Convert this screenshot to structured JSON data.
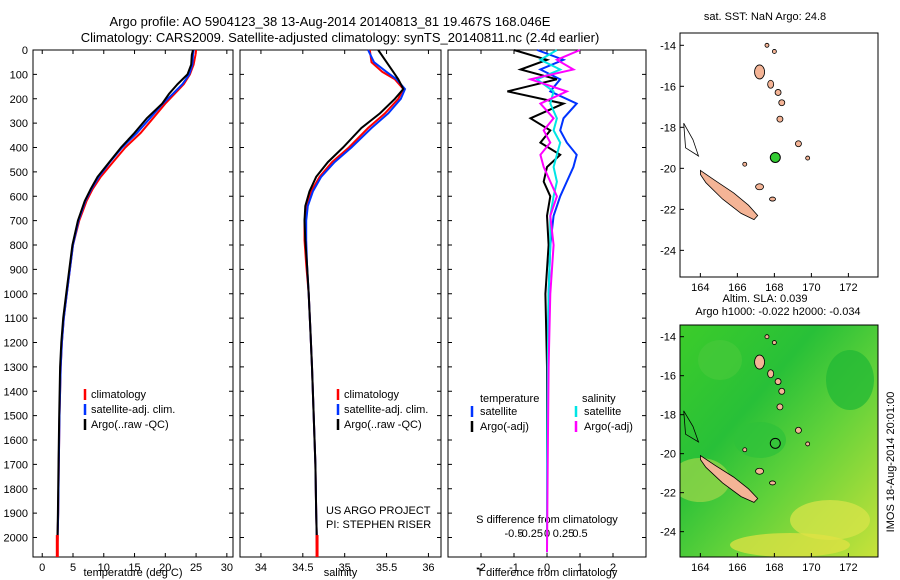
{
  "header": {
    "line1": "Argo profile: AO 5904123_38 13-Aug-2014 20140813_81 19.467S 168.046E",
    "line2": "Climatology: CARS2009. Satellite-adjusted climatology: synTS_20140811.nc (2.4d earlier)"
  },
  "colors": {
    "clim": "#ff0000",
    "sat": "#0033ff",
    "argo": "#000000",
    "sat_salt": "#00e5e5",
    "argo_salt": "#ff00ff",
    "land": "#f4b496"
  },
  "depth_axis": {
    "ticks": [
      0,
      100,
      200,
      300,
      400,
      500,
      600,
      700,
      800,
      900,
      1000,
      1100,
      1200,
      1300,
      1400,
      1500,
      1600,
      1700,
      1800,
      1900,
      2000
    ],
    "ylim": [
      0,
      2080
    ]
  },
  "chart_data": [
    {
      "type": "line",
      "id": "temperature",
      "xlabel": "temperature (deg C)",
      "ylim": [
        0,
        2080
      ],
      "xlim": [
        -1.5,
        31
      ],
      "xticks": [
        0,
        5,
        10,
        15,
        20,
        25,
        30
      ],
      "xtick_labels": [
        "0",
        "5",
        "10",
        "15",
        "20",
        "25",
        "30"
      ],
      "legend": [
        "climatology",
        "satellite-adj. clim.",
        "Argo(..raw -QC)"
      ],
      "legend_position": "lower-center",
      "series": [
        {
          "name": "climatology",
          "color": "clim",
          "x": [
            25.0,
            24.9,
            24.6,
            24.0,
            23.0,
            21.5,
            20.0,
            18.0,
            16.0,
            13.5,
            11.5,
            9.5,
            8.2,
            7.2,
            6.0,
            5.0,
            4.5,
            4.0,
            3.5,
            3.2,
            3.0,
            2.8,
            2.7,
            2.6,
            2.5,
            2.45
          ],
          "y": [
            0,
            20,
            60,
            100,
            140,
            180,
            220,
            280,
            340,
            400,
            460,
            520,
            570,
            620,
            700,
            800,
            900,
            1000,
            1100,
            1200,
            1300,
            1500,
            1700,
            1900,
            2000,
            2060
          ]
        },
        {
          "name": "satellite-adj. clim.",
          "color": "sat",
          "x": [
            24.6,
            24.5,
            24.4,
            23.9,
            22.8,
            21.2,
            19.6,
            17.5,
            15.4,
            13.0,
            11.0,
            9.2,
            8.0,
            7.0,
            5.9,
            5.0,
            4.5,
            4.0,
            3.5,
            3.2,
            3.0,
            2.8,
            2.7,
            2.6,
            2.5,
            2.45
          ],
          "y": [
            0,
            20,
            60,
            100,
            140,
            180,
            220,
            280,
            340,
            400,
            460,
            520,
            570,
            620,
            700,
            800,
            900,
            1000,
            1100,
            1200,
            1300,
            1500,
            1700,
            1900,
            2000,
            2060
          ]
        },
        {
          "name": "Argo(..raw -QC)",
          "color": "argo",
          "x": [
            24.5,
            24.3,
            24.2,
            23.6,
            22.0,
            20.6,
            19.5,
            17.0,
            15.0,
            12.8,
            10.9,
            9.0,
            7.9,
            6.9,
            5.8,
            4.9,
            4.4,
            3.9,
            3.4,
            3.1,
            2.9,
            2.75,
            2.65,
            2.55,
            2.48,
            2.45
          ],
          "y": [
            0,
            20,
            60,
            100,
            140,
            180,
            220,
            280,
            340,
            400,
            460,
            520,
            570,
            620,
            700,
            800,
            900,
            1000,
            1100,
            1200,
            1300,
            1500,
            1700,
            1900,
            2000,
            2060
          ]
        }
      ]
    },
    {
      "type": "line",
      "id": "salinity",
      "xlabel": "salinity",
      "ylim": [
        0,
        2080
      ],
      "xlim": [
        33.75,
        36.15
      ],
      "xticks": [
        34,
        34.5,
        35,
        35.5,
        36
      ],
      "xtick_labels": [
        "34",
        "34.5",
        "35",
        "35.5",
        "36"
      ],
      "legend": [
        "climatology",
        "satellite-adj. clim.",
        "Argo(..raw -QC)"
      ],
      "legend_position": "lower-right",
      "annotation": [
        "US ARGO PROJECT",
        "PI: STEPHEN RISER"
      ],
      "series": [
        {
          "name": "climatology",
          "color": "clim",
          "x": [
            35.3,
            35.32,
            35.45,
            35.6,
            35.7,
            35.64,
            35.48,
            35.28,
            35.05,
            34.85,
            34.7,
            34.6,
            34.55,
            34.52,
            34.52,
            34.54,
            34.57,
            34.59,
            34.61,
            34.63,
            34.65,
            34.66,
            34.67
          ],
          "y": [
            0,
            50,
            90,
            120,
            160,
            200,
            260,
            320,
            400,
            460,
            520,
            580,
            640,
            700,
            780,
            880,
            1000,
            1150,
            1300,
            1500,
            1700,
            1900,
            2060
          ]
        },
        {
          "name": "satellite-adj. clim.",
          "color": "sat",
          "x": [
            35.28,
            35.35,
            35.5,
            35.62,
            35.72,
            35.67,
            35.52,
            35.32,
            35.08,
            34.88,
            34.72,
            34.62,
            34.56,
            34.54,
            34.54,
            34.55,
            34.57,
            34.59,
            34.61,
            34.63,
            34.65,
            34.66,
            34.67
          ],
          "y": [
            0,
            50,
            90,
            120,
            160,
            200,
            260,
            320,
            400,
            460,
            520,
            580,
            640,
            700,
            780,
            880,
            1000,
            1150,
            1300,
            1500,
            1700,
            1900,
            2060
          ]
        },
        {
          "name": "Argo(..raw -QC)",
          "color": "argo",
          "x": [
            35.4,
            35.5,
            35.58,
            35.64,
            35.7,
            35.6,
            35.42,
            35.2,
            34.98,
            34.8,
            34.66,
            34.58,
            34.53,
            34.52,
            34.53,
            34.55,
            34.57,
            34.59,
            34.61,
            34.63,
            34.65,
            34.66,
            34.67
          ],
          "y": [
            0,
            50,
            90,
            120,
            160,
            200,
            260,
            320,
            400,
            460,
            520,
            580,
            640,
            700,
            780,
            880,
            1000,
            1150,
            1300,
            1500,
            1700,
            1900,
            2060
          ]
        }
      ]
    },
    {
      "type": "line",
      "id": "difference",
      "xlabel": "T difference from climatology",
      "xlabel_top": "S difference from climatology",
      "ylim": [
        0,
        2080
      ],
      "xlim": [
        -3,
        3
      ],
      "xticks": [
        -2,
        -1,
        0,
        1,
        2
      ],
      "xtick_labels": [
        "-2",
        "-1",
        "0",
        "1",
        "2"
      ],
      "sticks_top": [
        -0.5,
        -0.25,
        0,
        0.25,
        0.5
      ],
      "stick_labels_top": [
        "-0.5",
        "-0.25",
        "0",
        "0.25",
        "0.5"
      ],
      "legend_titles": [
        "temperature",
        "salinity"
      ],
      "legend": [
        "satellite",
        "Argo(-adj)",
        "satellite",
        "Argo(-adj)"
      ],
      "legend_position": "lower-center",
      "series": [
        {
          "name": "satellite",
          "color": "sat",
          "x": [
            -0.3,
            0.5,
            -0.2,
            0.4,
            0.1,
            0.9,
            0.5,
            0.4,
            0.6,
            0.9,
            0.8,
            0.6,
            0.4,
            0.2,
            0.1,
            0.05,
            0.02,
            0,
            0
          ],
          "y": [
            0,
            40,
            80,
            120,
            170,
            220,
            280,
            330,
            380,
            430,
            480,
            540,
            600,
            680,
            800,
            1000,
            1300,
            1700,
            2060
          ]
        },
        {
          "name": "Argo(-adj)",
          "color": "argo",
          "x": [
            -1.0,
            0.0,
            -0.8,
            0.3,
            -1.2,
            0.5,
            -0.5,
            0.1,
            -0.2,
            0.4,
            0.0,
            -0.1,
            0.1,
            0.0,
            0.05,
            -0.05,
            0.0,
            0.0,
            0.0
          ],
          "y": [
            0,
            40,
            80,
            120,
            170,
            220,
            280,
            330,
            380,
            430,
            480,
            540,
            600,
            680,
            800,
            1000,
            1300,
            1700,
            2060
          ]
        },
        {
          "name": "satellite",
          "color": "sat_salt",
          "x": [
            0.3,
            -0.2,
            0.4,
            -0.3,
            0.2,
            0.1,
            0.3,
            0.2,
            0.4,
            0.3,
            0.2,
            0.3,
            0.2,
            0.1,
            0.1,
            0.05,
            0.02,
            0,
            0
          ],
          "y": [
            0,
            40,
            80,
            120,
            170,
            220,
            280,
            330,
            380,
            430,
            480,
            540,
            600,
            680,
            800,
            1000,
            1300,
            1700,
            2060
          ]
        },
        {
          "name": "Argo(-adj)",
          "color": "argo_salt",
          "x": [
            1.0,
            0.3,
            0.8,
            -0.5,
            0.6,
            -0.2,
            0.2,
            -0.1,
            0.1,
            -0.2,
            -0.1,
            0.1,
            0.3,
            0.1,
            0.2,
            0.1,
            0.05,
            0.02,
            0
          ],
          "y": [
            0,
            40,
            80,
            120,
            170,
            220,
            280,
            330,
            380,
            430,
            480,
            540,
            600,
            680,
            800,
            1000,
            1300,
            1700,
            2060
          ]
        }
      ]
    }
  ],
  "maps": [
    {
      "id": "map-sst",
      "title": "sat. SST: NaN Argo: 24.8",
      "xticks": [
        164,
        166,
        168,
        170,
        172
      ],
      "yticks": [
        -14,
        -16,
        -18,
        -20,
        -22,
        -24
      ],
      "xlim": [
        162.9,
        173.6
      ],
      "ylim": [
        -25.3,
        -13.4
      ],
      "argo_lon": 168.05,
      "argo_lat": -19.47
    },
    {
      "id": "map-sla",
      "title": "Altim. SLA: 0.039",
      "subtitle": "Argo h1000: -0.022 h2000: -0.034",
      "xticks": [
        164,
        166,
        168,
        170,
        172
      ],
      "yticks": [
        -14,
        -16,
        -18,
        -20,
        -22,
        -24
      ],
      "xlim": [
        162.9,
        173.6
      ],
      "ylim": [
        -25.3,
        -13.4
      ],
      "argo_lon": 168.05,
      "argo_lat": -19.47
    }
  ],
  "side_label": "IMOS 18-Aug-2014 20:01:00"
}
